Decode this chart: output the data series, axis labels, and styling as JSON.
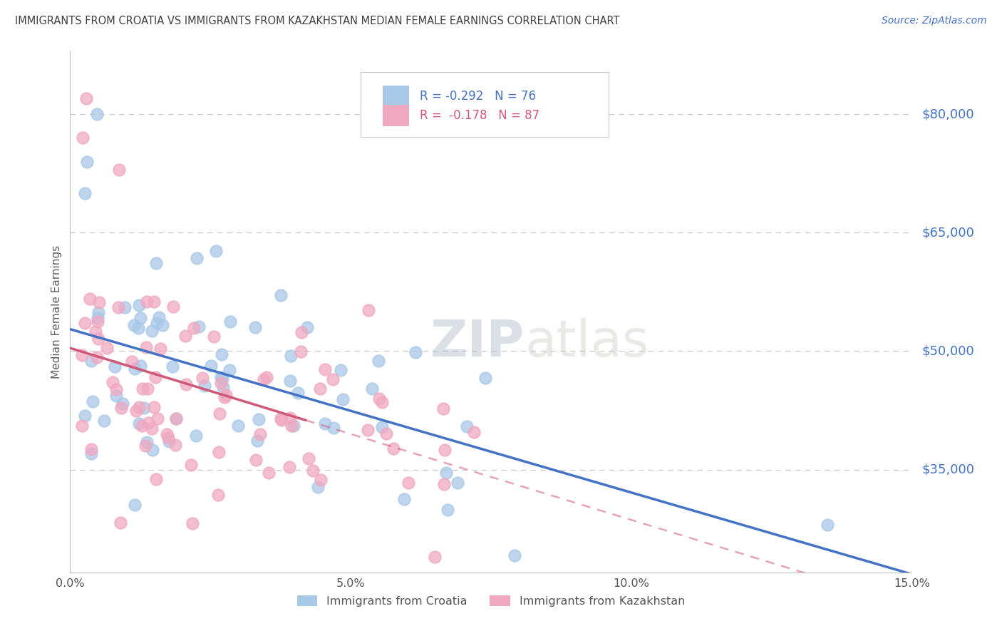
{
  "title": "IMMIGRANTS FROM CROATIA VS IMMIGRANTS FROM KAZAKHSTAN MEDIAN FEMALE EARNINGS CORRELATION CHART",
  "source": "Source: ZipAtlas.com",
  "ylabel": "Median Female Earnings",
  "xlim": [
    0.0,
    0.15
  ],
  "ylim": [
    22000,
    88000
  ],
  "yticks": [
    35000,
    50000,
    65000,
    80000
  ],
  "ytick_labels": [
    "$35,000",
    "$50,000",
    "$65,000",
    "$80,000"
  ],
  "xtick_labels": [
    "0.0%",
    "5.0%",
    "10.0%",
    "15.0%"
  ],
  "xticks": [
    0.0,
    0.05,
    0.1,
    0.15
  ],
  "croatia_color": "#a8c8e8",
  "kazakhstan_color": "#f0a8c0",
  "croatia_line_color": "#4472c4",
  "kazakhstan_line_color": "#d05878",
  "legend_blue_color": "#4472c4",
  "legend_pink_color": "#d05878",
  "R_croatia": -0.292,
  "N_croatia": 76,
  "R_kazakhstan": -0.178,
  "N_kazakhstan": 87,
  "watermark_text": "ZIPatlas",
  "background_color": "#ffffff",
  "grid_color": "#c8c8c8",
  "title_color": "#404040",
  "axis_label_color": "#606060",
  "ytick_color": "#4472c4",
  "source_color": "#4472c4"
}
